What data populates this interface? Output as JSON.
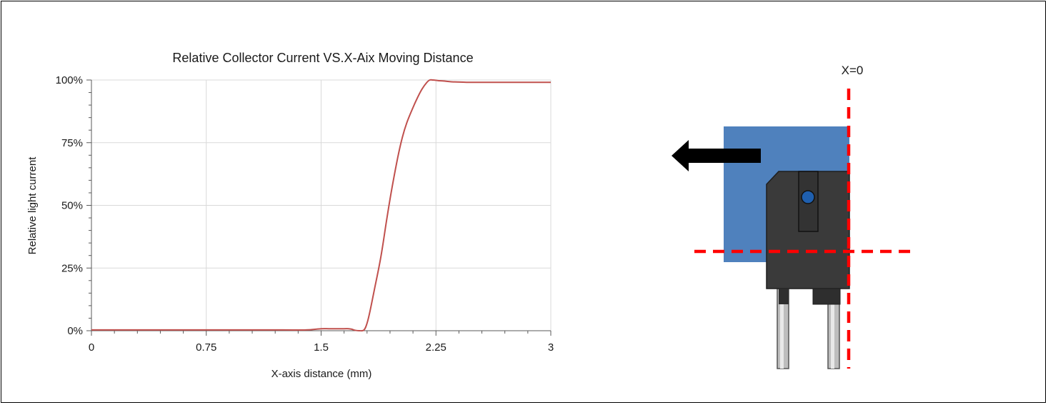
{
  "chart_data": {
    "type": "line",
    "title": "Relative Collector Current VS.X-Aix Moving Distance",
    "xlabel": "X-axis distance (mm)",
    "ylabel": "Relative light current",
    "xlim": [
      0,
      3
    ],
    "ylim": [
      0,
      100
    ],
    "x_ticks": [
      "0",
      "0.75",
      "1.5",
      "2.25",
      "3"
    ],
    "y_ticks": [
      "0%",
      "25%",
      "50%",
      "75%",
      "100%"
    ],
    "grid": true,
    "legend": "none",
    "series": [
      {
        "color": "#c0504d",
        "x": [
          0,
          0.25,
          0.5,
          0.75,
          1.0,
          1.25,
          1.4,
          1.5,
          1.55,
          1.6,
          1.65,
          1.68,
          1.7,
          1.72,
          1.75,
          1.78,
          1.8,
          1.82,
          1.85,
          1.88,
          1.9,
          1.93,
          1.96,
          2.0,
          2.03,
          2.06,
          2.1,
          2.13,
          2.16,
          2.19,
          2.21,
          2.23,
          2.26,
          2.3,
          2.35,
          2.45,
          2.6,
          2.8,
          3.0
        ],
        "y": [
          0.3,
          0.3,
          0.3,
          0.3,
          0.3,
          0.3,
          0.3,
          0.8,
          0.8,
          0.8,
          0.8,
          0.8,
          0.6,
          0.2,
          0.0,
          0.3,
          3.0,
          8.0,
          17.0,
          26.0,
          33.0,
          45.0,
          56.0,
          69.0,
          77.0,
          83.0,
          89.0,
          93.0,
          96.5,
          99.0,
          100.0,
          100.0,
          99.8,
          99.6,
          99.3,
          99.1,
          99.1,
          99.1,
          99.1
        ]
      }
    ]
  },
  "diagram": {
    "label": "X=0",
    "colors": {
      "block": "#4f81bd",
      "sensor_body": "#3a3a3a",
      "lens": "#1f5fae",
      "dashed_line": "#ff0000",
      "arrow": "#000000",
      "pins": "#c8c8c8"
    }
  }
}
